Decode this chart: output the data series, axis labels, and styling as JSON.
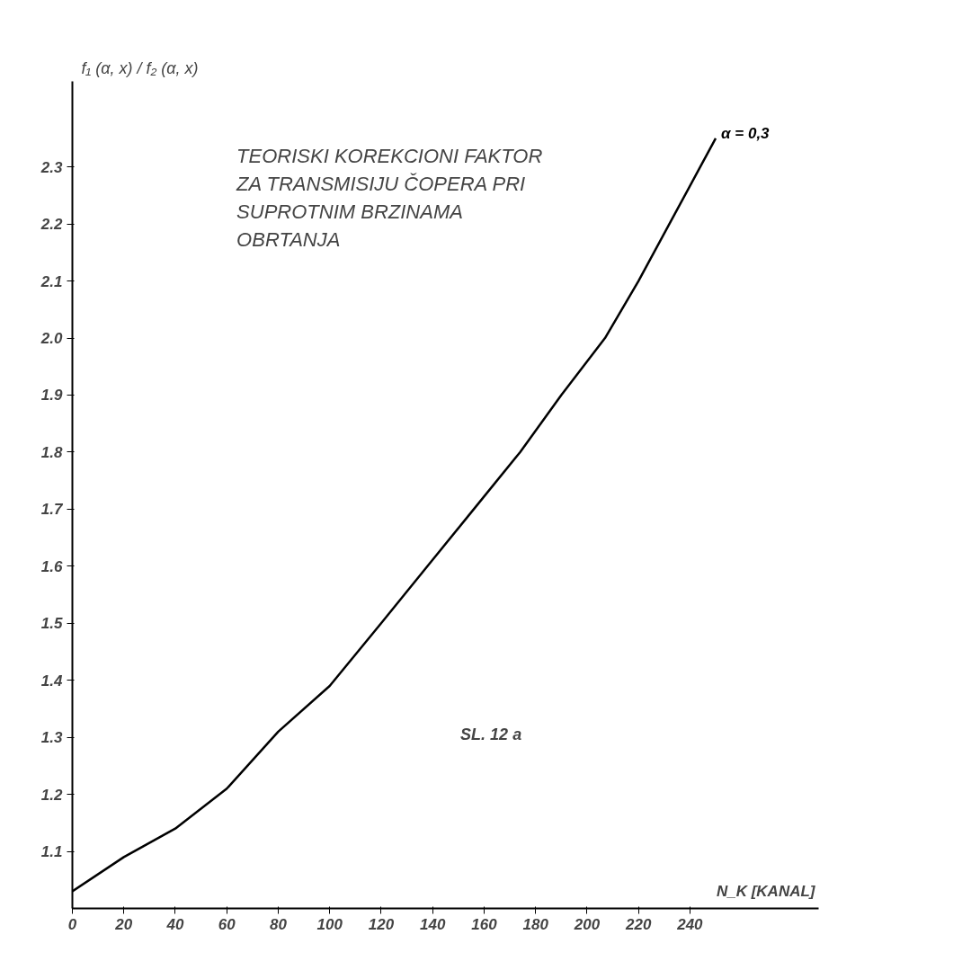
{
  "chart_data": {
    "type": "line",
    "title": "TEORISKI KOREKCIONI FAKTOR\nZA TRANSMISIJU ČOPERA PRI\nSUPROTNIM BRZINAMA\nOBRTANJA",
    "ylabel": "f₁ (α, x) / f₂ (α, x)",
    "xlabel": "N_K [KANAL]",
    "x": [
      0,
      20,
      40,
      60,
      80,
      100,
      120,
      138,
      156,
      174,
      190,
      207,
      220,
      232,
      244,
      250
    ],
    "series": [
      {
        "name": "α = 0,3",
        "color": "#000000",
        "values": [
          1.03,
          1.09,
          1.14,
          1.21,
          1.31,
          1.39,
          1.5,
          1.6,
          1.7,
          1.8,
          1.9,
          2.0,
          2.1,
          2.2,
          2.3,
          2.35
        ]
      }
    ],
    "xlim": [
      0,
      290
    ],
    "ylim": [
      1.0,
      2.45
    ],
    "xticks": [
      0,
      20,
      40,
      60,
      80,
      100,
      120,
      140,
      160,
      180,
      200,
      220,
      240
    ],
    "yticks": [
      {
        "value": 1.1,
        "label": "1.1"
      },
      {
        "value": 1.2,
        "label": "1.2"
      },
      {
        "value": 1.3,
        "label": "1.3"
      },
      {
        "value": 1.4,
        "label": "1.4"
      },
      {
        "value": 1.5,
        "label": "1.5"
      },
      {
        "value": 1.6,
        "label": "1.6"
      },
      {
        "value": 1.7,
        "label": "1.7"
      },
      {
        "value": 1.8,
        "label": "1.8"
      },
      {
        "value": 1.9,
        "label": "1.9"
      },
      {
        "value": 2.0,
        "label": "2.0"
      },
      {
        "value": 2.1,
        "label": "2.1"
      },
      {
        "value": 2.2,
        "label": "2.2"
      },
      {
        "value": 2.3,
        "label": "2.3"
      }
    ],
    "annotations": [
      "SL. 12 a"
    ],
    "grid": false,
    "marker": "none",
    "line_style": "solid"
  }
}
